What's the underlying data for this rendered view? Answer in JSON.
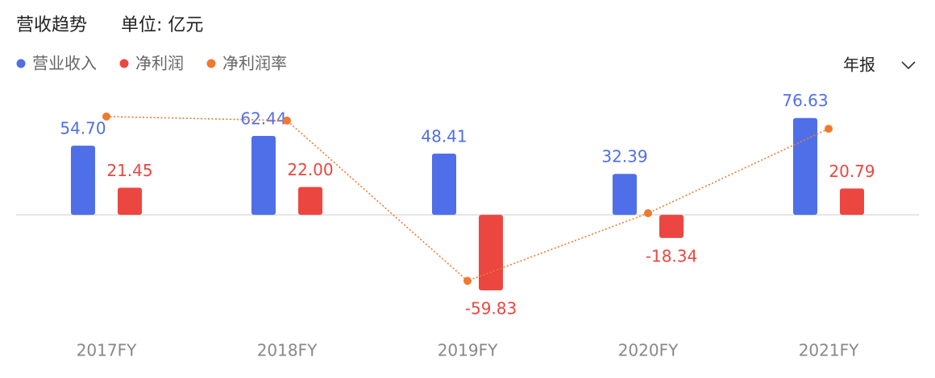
{
  "chart_data": {
    "type": "bar_line",
    "title": "营收趋势",
    "subtitle": "单位: 亿元",
    "period": "年报",
    "categories": [
      "2017FY",
      "2018FY",
      "2019FY",
      "2020FY",
      "2021FY"
    ],
    "series": [
      {
        "name": "营业收入",
        "color": "#4f6fe8",
        "values": [
          54.7,
          62.44,
          48.41,
          32.39,
          76.63
        ],
        "value_labels": [
          "54.70",
          "62.44",
          "48.41",
          "32.39",
          "76.63"
        ]
      },
      {
        "name": "净利润",
        "color": "#ec4640",
        "values": [
          21.45,
          22,
          -59.83,
          -18.34,
          20.79
        ],
        "value_labels": [
          "21.45",
          "22.00",
          "-59.83",
          "-18.34",
          "20.79"
        ]
      },
      {
        "name": "净利润率",
        "color": "#ef7a2e",
        "type": "line",
        "axis": "y2",
        "values": [
          39.2,
          35.2,
          -123.6,
          -56.6,
          27.1
        ]
      }
    ],
    "ylim": [
      -91,
      100
    ],
    "y2lim": [
      -172,
      67
    ]
  }
}
